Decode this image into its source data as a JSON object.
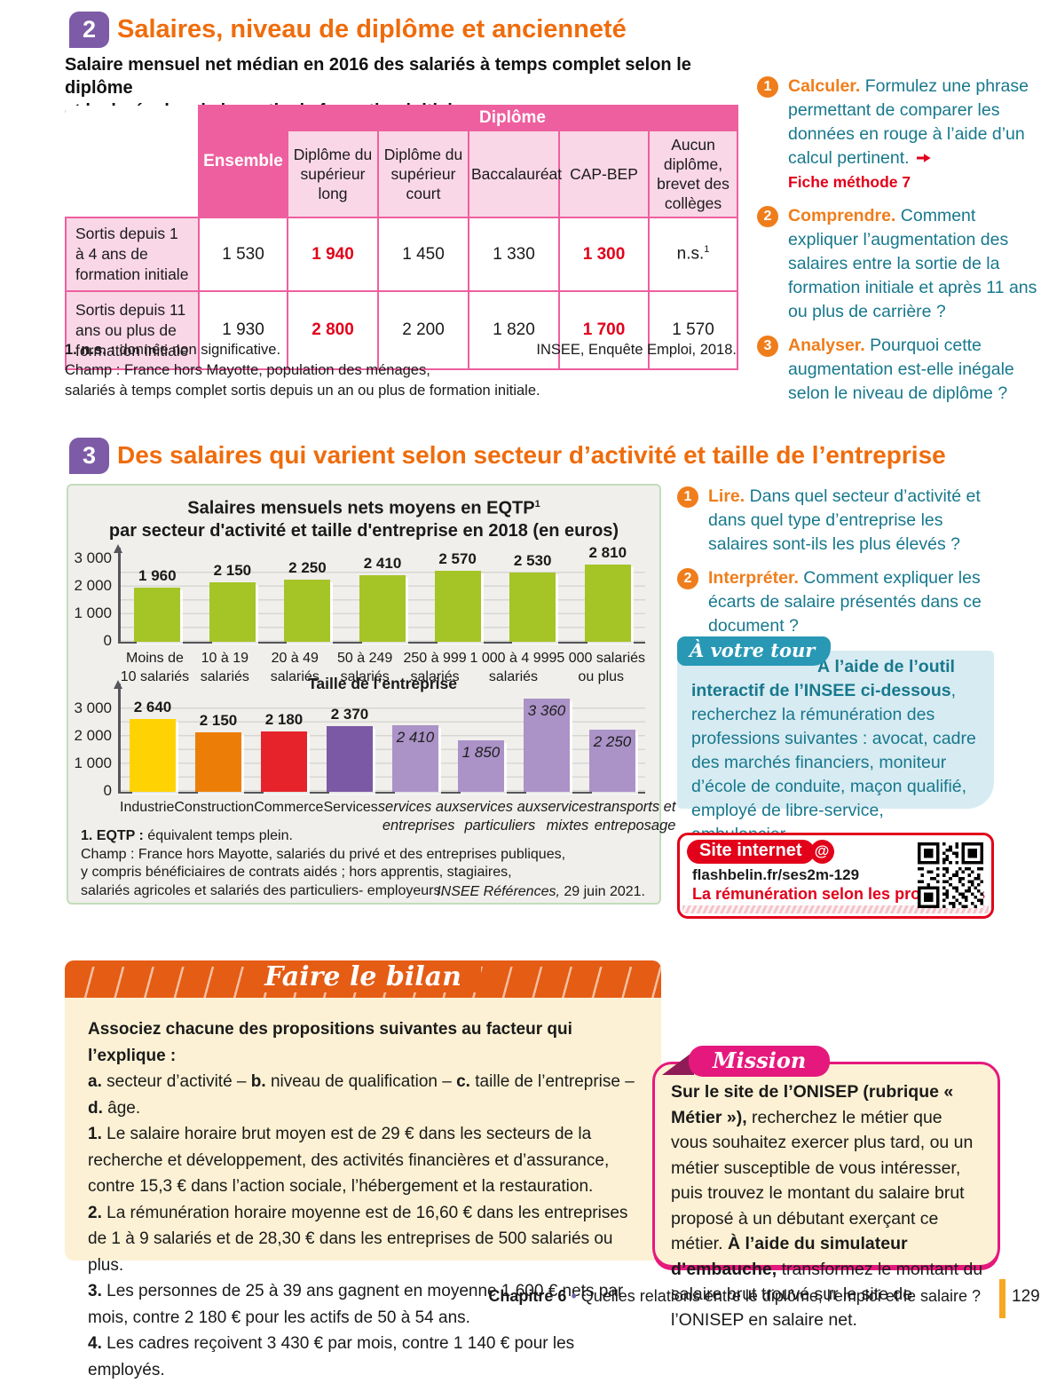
{
  "colors": {
    "accent_orange": "#ef6c0c",
    "badge_purple": "#7d5ba6",
    "table_pink": "#ee5f9f",
    "table_pink_light": "#f9d7e6",
    "data_red": "#e2001a",
    "teal_text": "#17788d",
    "tab_teal": "#2898b5",
    "light_blue": "#d7ebf2",
    "green_bar": "#a5c426",
    "cream": "#fcf1d4",
    "mission_pink": "#e5197d",
    "banner_orange": "#e55c15"
  },
  "section2": {
    "number": "2",
    "title": "Salaires, niveau de diplôme et ancienneté",
    "subtitle_line1": "Salaire mensuel net médian en 2016 des salariés à temps complet selon le diplôme",
    "subtitle_line2": "et la durée depuis la sortie de formation initiale, en euros",
    "table": {
      "group_header": "Diplôme",
      "ensemble_header": "Ensemble",
      "columns": {
        "c1": "Diplôme du supérieur long",
        "c2": "Diplôme du supérieur court",
        "c3": "Baccalauréat",
        "c4": "CAP-BEP",
        "c5": "Aucun diplôme, brevet des collèges"
      },
      "rows": [
        {
          "label": "Sortis depuis 1 à 4 ans de formation initiale",
          "ensemble": "1 530",
          "values": [
            {
              "v": "1 940",
              "red": true
            },
            {
              "v": "1 450"
            },
            {
              "v": "1 330"
            },
            {
              "v": "1 300",
              "red": true
            },
            {
              "v": "n.s.",
              "sup": "1"
            }
          ]
        },
        {
          "label": "Sortis depuis 11 ans ou plus de formation initiale",
          "ensemble": "1 930",
          "values": [
            {
              "v": "2 800",
              "red": true
            },
            {
              "v": "2 200"
            },
            {
              "v": "1 820"
            },
            {
              "v": "1 700",
              "red": true
            },
            {
              "v": "1 570"
            }
          ]
        }
      ],
      "note1": [
        {
          "t": "1. n.s. :",
          "b": true
        },
        {
          "t": " donnée non significative."
        }
      ],
      "note2": "Champ : France hors Mayotte, population des ménages,",
      "note3": "salariés à temps complet sortis depuis un an ou plus de formation initiale.",
      "source": "INSEE, Enquête Emploi, 2018."
    },
    "questions": [
      {
        "num": "1",
        "verb": "Calculer.",
        "text": " Formulez une phrase permettant de comparer les données en rouge à l’aide d’un calcul pertinent.",
        "link": "Fiche méthode 7"
      },
      {
        "num": "2",
        "verb": "Comprendre.",
        "text": " Comment expliquer l’augmentation des salaires entre la sortie de la formation initiale et après 11 ans ou plus de carrière ?"
      },
      {
        "num": "3",
        "verb": "Analyser.",
        "text": " Pourquoi cette augmentation est-elle inégale selon le niveau de diplôme ?"
      }
    ]
  },
  "section3": {
    "number": "3",
    "title": "Des salaires qui varient selon secteur d’activité et taille de l’entreprise",
    "doc": {
      "title_line1": "Salaires mensuels nets moyens en EQTP",
      "title_sup": "1",
      "title_line2": "par secteur d'activité et taille d'entreprise en 2018 (en euros)",
      "xlabel": "Taille de l’entreprise",
      "note_eqtp": [
        {
          "t": "1. EQTP :",
          "b": true
        },
        {
          "t": " équivalent temps plein."
        }
      ],
      "champ1": "Champ : France hors Mayotte, salariés du privé et des entreprises publiques,",
      "champ2": "y compris bénéficiaires de contrats aidés ; hors apprentis, stagiaires,",
      "champ3": "salariés agricoles et salariés des particuliers- employeurs.",
      "source": [
        {
          "t": "INSEE Références,",
          "i": true
        },
        {
          "t": " 29 juin 2021."
        }
      ]
    },
    "questions": [
      {
        "num": "1",
        "verb": "Lire.",
        "text": " Dans quel secteur d’activité et dans quel type d’entreprise les salaires sont-ils les plus élevés ?"
      },
      {
        "num": "2",
        "verb": "Interpréter.",
        "text": " Comment expliquer les écarts de salaire présentés dans ce document ?"
      }
    ],
    "a_votre_tour": {
      "tab": "À votre tour",
      "segments": [
        {
          "t": "À l’aide de l’outil interactif de l’INSEE ci-dessous",
          "b": true
        },
        {
          "t": ", recherchez la rémunération des professions suivantes : avocat, cadre des marchés financiers, moniteur d’école de conduite, maçon qualifié, employé de libre-service, ambulancier."
        }
      ]
    },
    "site_internet": {
      "label": "Site internet",
      "at": "@",
      "url": "flashbelin.fr/ses2m-129",
      "caption": "La rémunération selon les professions"
    }
  },
  "chart_data": [
    {
      "type": "bar",
      "title": "Salaires mensuels nets moyens en EQTP1 par secteur d'activité et taille d'entreprise en 2018 (en euros)",
      "xlabel": "Taille de l’entreprise",
      "ylim": [
        0,
        3000
      ],
      "yticks": [
        0,
        1000,
        2000,
        3000
      ],
      "ytick_labels": [
        "0",
        "1 000",
        "2 000",
        "3 000"
      ],
      "grid": true,
      "categories": [
        [
          "Moins de",
          "10 salariés"
        ],
        [
          "10 à 19",
          "salariés"
        ],
        [
          "20 à 49",
          "salariés"
        ],
        [
          "50 à 249",
          "salariés"
        ],
        [
          "250 à 999",
          "salariés"
        ],
        [
          "1 000 à 4 999",
          "salariés"
        ],
        [
          "5 000 salariés",
          "ou plus"
        ]
      ],
      "values": [
        1960,
        2150,
        2250,
        2410,
        2570,
        2530,
        2810
      ],
      "labels": [
        "1 960",
        "2 150",
        "2 250",
        "2 410",
        "2 570",
        "2 530",
        "2 810"
      ],
      "bar_color": "#a5c426"
    },
    {
      "type": "bar",
      "title": "Salaires mensuels nets moyens en EQTP par secteur d'activité en 2018 (en euros)",
      "ylim": [
        0,
        3500
      ],
      "yticks": [
        0,
        1000,
        2000,
        3000
      ],
      "ytick_labels": [
        "0",
        "1 000",
        "2 000",
        "3 000"
      ],
      "grid": true,
      "categories": [
        [
          "Industrie"
        ],
        [
          "Construction"
        ],
        [
          "Commerce"
        ],
        [
          "Services"
        ],
        [
          "services aux",
          "entreprises"
        ],
        [
          "services aux",
          "particuliers"
        ],
        [
          "services",
          "mixtes"
        ],
        [
          "transports et",
          "entreposage"
        ]
      ],
      "values": [
        2640,
        2150,
        2180,
        2370,
        2410,
        1850,
        3360,
        2250
      ],
      "labels": [
        "2 640",
        "2 150",
        "2 180",
        "2 370",
        "2 410",
        "1 850",
        "3 360",
        "2 250"
      ],
      "colors": [
        "#ffd303",
        "#ec7e07",
        "#e6232b",
        "#7b59a5",
        "#ab92c7",
        "#ab92c7",
        "#ab92c7",
        "#ab92c7"
      ],
      "label_inside": [
        false,
        false,
        false,
        false,
        true,
        true,
        true,
        true
      ],
      "italic_cats": [
        false,
        false,
        false,
        false,
        true,
        true,
        true,
        true
      ]
    }
  ],
  "bilan": {
    "banner": "Faire le bilan",
    "paragraphs": [
      [
        {
          "t": "Associez chacune des propositions suivantes au facteur qui l’explique :",
          "b": true
        }
      ],
      [
        {
          "t": "a.",
          "b": true
        },
        {
          "t": " secteur d’activité – "
        },
        {
          "t": "b.",
          "b": true
        },
        {
          "t": " niveau de qualification – "
        },
        {
          "t": "c.",
          "b": true
        },
        {
          "t": " taille de l’entreprise – "
        },
        {
          "t": "d.",
          "b": true
        },
        {
          "t": " âge."
        }
      ],
      [
        {
          "t": "1.",
          "b": true
        },
        {
          "t": " Le salaire horaire brut moyen est de 29 € dans les secteurs de la recherche et développement, des activités financières et d’assurance, contre 15,3 € dans l’action sociale, l’hébergement et la restauration."
        }
      ],
      [
        {
          "t": "2.",
          "b": true
        },
        {
          "t": " La rémunération horaire moyenne est de 16,60 € dans les entreprises de 1 à 9 salariés et de 28,30 € dans les entreprises de 500 salariés ou plus."
        }
      ],
      [
        {
          "t": "3.",
          "b": true
        },
        {
          "t": " Les personnes de 25 à 39 ans gagnent en moyenne 1 600 € nets par mois, contre 2 180 € pour les actifs de 50 à 54 ans."
        }
      ],
      [
        {
          "t": "4.",
          "b": true
        },
        {
          "t": " Les cadres reçoivent 3 430 € par mois, contre 1 140 € pour les employés."
        }
      ]
    ]
  },
  "mission": {
    "label": "Mission",
    "segments": [
      {
        "t": "Sur le site de l’ONISEP (rubrique « Métier »),",
        "b": true
      },
      {
        "t": " recherchez le métier que vous souhaitez exercer plus tard, ou un métier susceptible de vous intéresser, puis trouvez le montant du salaire brut proposé à un débutant exerçant ce métier. "
      },
      {
        "t": "À l’aide du simulateur d’embauche,",
        "b": true
      },
      {
        "t": " transformez le montant du salaire brut trouvé sur le site de l’ONISEP en salaire net."
      }
    ]
  },
  "footer": {
    "chapter": "Chapitre 6",
    "separator": "•",
    "title": " Quelles relations entre le diplôme, l’emploi et le salaire ?",
    "page_number": "129"
  }
}
